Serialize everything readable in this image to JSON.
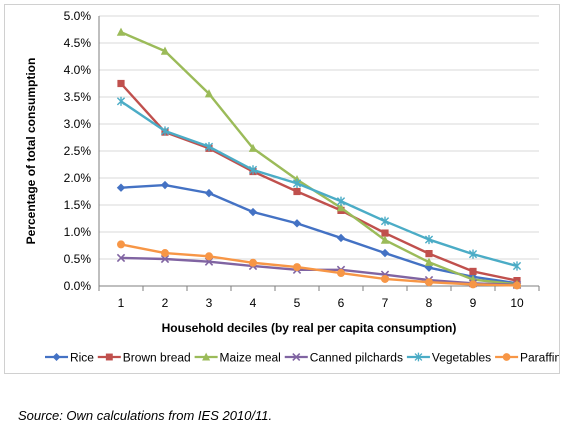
{
  "chart_data": {
    "type": "line",
    "xlabel": "Household deciles (by real per capita  consumption)",
    "ylabel": "Percentage of total consumption",
    "x": [
      1,
      2,
      3,
      4,
      5,
      6,
      7,
      8,
      9,
      10
    ],
    "xticks": [
      "1",
      "2",
      "3",
      "4",
      "5",
      "6",
      "7",
      "8",
      "9",
      "10"
    ],
    "yticks": [
      "0.0%",
      "0.5%",
      "1.0%",
      "1.5%",
      "2.0%",
      "2.5%",
      "3.0%",
      "3.5%",
      "4.0%",
      "4.5%",
      "5.0%"
    ],
    "ylim": [
      0,
      5
    ],
    "grid": "horizontal",
    "legend_position": "bottom",
    "series": [
      {
        "name": "Rice",
        "color": "#4472C4",
        "marker": "diamond",
        "values": [
          1.82,
          1.87,
          1.72,
          1.37,
          1.16,
          0.89,
          0.61,
          0.34,
          0.17,
          0.05
        ]
      },
      {
        "name": "Brown bread",
        "color": "#C0504D",
        "marker": "square",
        "values": [
          3.75,
          2.85,
          2.55,
          2.12,
          1.75,
          1.4,
          0.98,
          0.6,
          0.27,
          0.1
        ]
      },
      {
        "name": "Maize meal",
        "color": "#9BBB59",
        "marker": "triangle",
        "values": [
          4.7,
          4.35,
          3.56,
          2.55,
          1.97,
          1.45,
          0.85,
          0.44,
          0.12,
          0.03
        ]
      },
      {
        "name": "Canned pilchards",
        "color": "#8064A2",
        "marker": "x",
        "values": [
          0.52,
          0.5,
          0.45,
          0.37,
          0.3,
          0.3,
          0.21,
          0.11,
          0.05,
          0.02
        ]
      },
      {
        "name": "Vegetables",
        "color": "#4BACC6",
        "marker": "star",
        "values": [
          3.42,
          2.87,
          2.58,
          2.15,
          1.9,
          1.57,
          1.2,
          0.86,
          0.59,
          0.37
        ]
      },
      {
        "name": "Paraffin",
        "color": "#F79646",
        "marker": "circle",
        "values": [
          0.77,
          0.61,
          0.55,
          0.43,
          0.35,
          0.24,
          0.13,
          0.07,
          0.03,
          0.01
        ]
      }
    ]
  },
  "source_note": "Source: Own calculations from IES 2010/11."
}
